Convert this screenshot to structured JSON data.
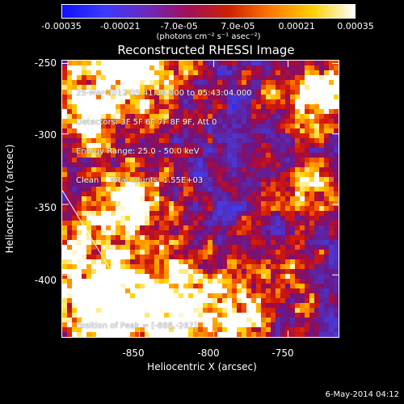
{
  "colorbar": {
    "ticks": [
      "-0.00035",
      "-0.00021",
      "-7.0e-05",
      "7.0e-05",
      "0.00021",
      "0.00035"
    ],
    "units": "(photons cm⁻² s⁻¹ asec⁻²)",
    "colors": [
      "#1010ff",
      "#3a3aff",
      "#6a2ac0",
      "#a0105a",
      "#d02000",
      "#ff7a00",
      "#ffd000",
      "#ffffff"
    ]
  },
  "title": "Reconstructed RHESSI Image",
  "info_lines": [
    "25-Mar-2012 05:41:36.000 to 05:43:04.000",
    "Detectors: 3F 5F 6F 7F 8F 9F, Att 0",
    "Energy Range: 25.0 - 50.0 keV",
    "Clean    Total counts: 1.55E+03"
  ],
  "peak_label": "Position of Peak = [-888,-267]",
  "date_stamp": "6-May-2014 04:12",
  "axes": {
    "xlabel": "Heliocentric X (arcsec)",
    "ylabel": "Heliocentric Y (arcsec)",
    "xticks": [
      "-850",
      "-800",
      "-750"
    ],
    "yticks": [
      "-250",
      "-300",
      "-350",
      "-400"
    ]
  },
  "chart_data": {
    "type": "heatmap",
    "title": "Reconstructed RHESSI Image",
    "xlabel": "Heliocentric X (arcsec)",
    "ylabel": "Heliocentric Y (arcsec)",
    "xlim": [
      -902,
      -716
    ],
    "ylim": [
      -444,
      -248
    ],
    "color_range": [
      -0.00035,
      0.00035
    ],
    "xticks": [
      -850,
      -800,
      -750
    ],
    "yticks": [
      -250,
      -300,
      -350,
      -400
    ],
    "peak": [
      -888,
      -267
    ],
    "limb_line": [
      [
        -902,
        -340
      ],
      [
        -842,
        -444
      ]
    ]
  }
}
